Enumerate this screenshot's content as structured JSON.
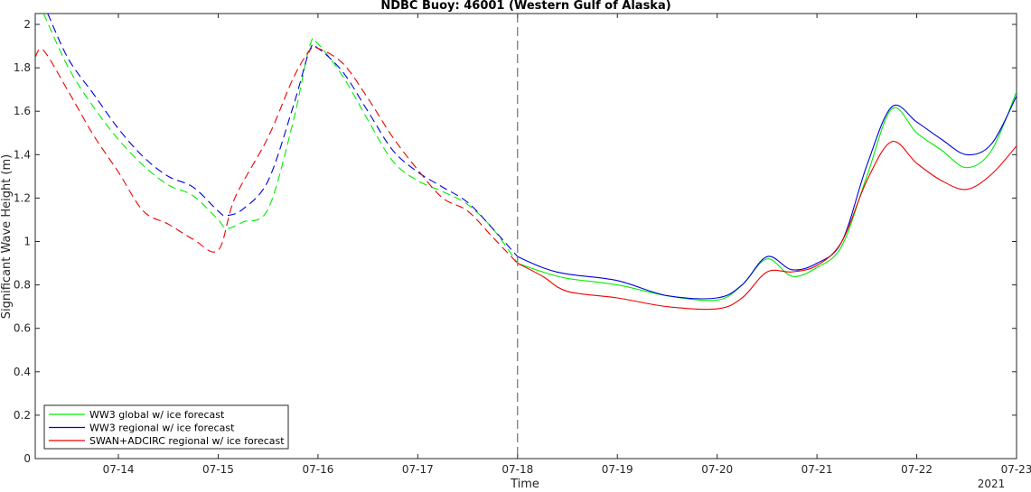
{
  "chart_data": {
    "type": "line",
    "title": "NDBC Buoy: 46001 (Western Gulf of Alaska)",
    "xlabel": "Time",
    "ylabel": "Significant Wave Height (m)",
    "year_label": "2021",
    "xlim": [
      "07-13 04:00",
      "07-23 00:00"
    ],
    "ylim": [
      0,
      2.05
    ],
    "x_ticks": [
      "07-14",
      "07-15",
      "07-16",
      "07-17",
      "07-18",
      "07-19",
      "07-20",
      "07-21",
      "07-22",
      "07-23"
    ],
    "y_ticks": [
      0,
      0.2,
      0.4,
      0.6,
      0.8,
      1,
      1.2,
      1.4,
      1.6,
      1.8,
      2
    ],
    "y_tick_labels": [
      "0",
      "0.2",
      "0.4",
      "0.6",
      "0.8",
      "1",
      "1.2",
      "1.4",
      "1.6",
      "1.8",
      "2"
    ],
    "forecast_start": "07-18",
    "grid": false,
    "legend_position": "bottom-left",
    "series": [
      {
        "name": "WW3 global w/ ice forecast",
        "color": "#00ee00",
        "points": [
          [
            "07-13 06:00",
            2.05
          ],
          [
            "07-13 12:00",
            1.8
          ],
          [
            "07-13 18:00",
            1.62
          ],
          [
            "07-14 00:00",
            1.47
          ],
          [
            "07-14 06:00",
            1.35
          ],
          [
            "07-14 12:00",
            1.26
          ],
          [
            "07-14 18:00",
            1.21
          ],
          [
            "07-15 00:00",
            1.1
          ],
          [
            "07-15 02:00",
            1.06
          ],
          [
            "07-15 06:00",
            1.09
          ],
          [
            "07-15 12:00",
            1.15
          ],
          [
            "07-15 18:00",
            1.55
          ],
          [
            "07-15 22:00",
            1.9
          ],
          [
            "07-16 00:00",
            1.91
          ],
          [
            "07-16 06:00",
            1.76
          ],
          [
            "07-16 12:00",
            1.56
          ],
          [
            "07-16 18:00",
            1.37
          ],
          [
            "07-17 00:00",
            1.28
          ],
          [
            "07-17 06:00",
            1.23
          ],
          [
            "07-17 12:00",
            1.17
          ],
          [
            "07-17 18:00",
            1.06
          ],
          [
            "07-18 00:00",
            0.9
          ],
          [
            "07-18 06:00",
            0.86
          ],
          [
            "07-18 12:00",
            0.83
          ],
          [
            "07-19 00:00",
            0.8
          ],
          [
            "07-19 12:00",
            0.75
          ],
          [
            "07-20 00:00",
            0.73
          ],
          [
            "07-20 06:00",
            0.8
          ],
          [
            "07-20 12:00",
            0.92
          ],
          [
            "07-20 18:00",
            0.84
          ],
          [
            "07-21 00:00",
            0.88
          ],
          [
            "07-21 06:00",
            0.98
          ],
          [
            "07-21 12:00",
            1.3
          ],
          [
            "07-21 18:00",
            1.61
          ],
          [
            "07-22 00:00",
            1.5
          ],
          [
            "07-22 06:00",
            1.42
          ],
          [
            "07-22 12:00",
            1.34
          ],
          [
            "07-22 18:00",
            1.42
          ],
          [
            "07-23 00:00",
            1.69
          ]
        ]
      },
      {
        "name": "WW3 regional w/ ice forecast",
        "color": "#0000dd",
        "points": [
          [
            "07-13 07:00",
            2.05
          ],
          [
            "07-13 12:00",
            1.84
          ],
          [
            "07-13 18:00",
            1.68
          ],
          [
            "07-14 00:00",
            1.52
          ],
          [
            "07-14 06:00",
            1.39
          ],
          [
            "07-14 12:00",
            1.3
          ],
          [
            "07-14 18:00",
            1.25
          ],
          [
            "07-15 00:00",
            1.14
          ],
          [
            "07-15 02:00",
            1.12
          ],
          [
            "07-15 06:00",
            1.15
          ],
          [
            "07-15 12:00",
            1.28
          ],
          [
            "07-15 18:00",
            1.62
          ],
          [
            "07-15 22:00",
            1.88
          ],
          [
            "07-16 00:00",
            1.89
          ],
          [
            "07-16 06:00",
            1.78
          ],
          [
            "07-16 12:00",
            1.6
          ],
          [
            "07-16 18:00",
            1.42
          ],
          [
            "07-17 00:00",
            1.32
          ],
          [
            "07-17 06:00",
            1.25
          ],
          [
            "07-17 12:00",
            1.18
          ],
          [
            "07-17 18:00",
            1.06
          ],
          [
            "07-18 00:00",
            0.93
          ],
          [
            "07-18 06:00",
            0.88
          ],
          [
            "07-18 12:00",
            0.85
          ],
          [
            "07-19 00:00",
            0.82
          ],
          [
            "07-19 12:00",
            0.75
          ],
          [
            "07-20 00:00",
            0.74
          ],
          [
            "07-20 06:00",
            0.8
          ],
          [
            "07-20 12:00",
            0.93
          ],
          [
            "07-20 18:00",
            0.87
          ],
          [
            "07-21 00:00",
            0.9
          ],
          [
            "07-21 06:00",
            1.0
          ],
          [
            "07-21 12:00",
            1.35
          ],
          [
            "07-21 18:00",
            1.62
          ],
          [
            "07-22 00:00",
            1.55
          ],
          [
            "07-22 06:00",
            1.47
          ],
          [
            "07-22 12:00",
            1.4
          ],
          [
            "07-22 18:00",
            1.45
          ],
          [
            "07-23 00:00",
            1.67
          ]
        ]
      },
      {
        "name": "SWAN+ADCIRC regional w/ ice forecast",
        "color": "#ee0000",
        "points": [
          [
            "07-13 04:00",
            1.85
          ],
          [
            "07-13 06:00",
            1.88
          ],
          [
            "07-13 12:00",
            1.69
          ],
          [
            "07-13 18:00",
            1.49
          ],
          [
            "07-14 00:00",
            1.32
          ],
          [
            "07-14 06:00",
            1.14
          ],
          [
            "07-14 12:00",
            1.08
          ],
          [
            "07-14 18:00",
            1.01
          ],
          [
            "07-15 00:00",
            0.96
          ],
          [
            "07-15 04:00",
            1.2
          ],
          [
            "07-15 12:00",
            1.48
          ],
          [
            "07-15 18:00",
            1.75
          ],
          [
            "07-15 22:00",
            1.88
          ],
          [
            "07-16 00:00",
            1.89
          ],
          [
            "07-16 06:00",
            1.82
          ],
          [
            "07-16 12:00",
            1.66
          ],
          [
            "07-16 18:00",
            1.48
          ],
          [
            "07-17 00:00",
            1.33
          ],
          [
            "07-17 06:00",
            1.2
          ],
          [
            "07-17 12:00",
            1.14
          ],
          [
            "07-17 18:00",
            1.02
          ],
          [
            "07-18 00:00",
            0.9
          ],
          [
            "07-18 06:00",
            0.84
          ],
          [
            "07-18 12:00",
            0.77
          ],
          [
            "07-19 00:00",
            0.74
          ],
          [
            "07-19 12:00",
            0.7
          ],
          [
            "07-20 00:00",
            0.69
          ],
          [
            "07-20 06:00",
            0.74
          ],
          [
            "07-20 12:00",
            0.86
          ],
          [
            "07-20 18:00",
            0.86
          ],
          [
            "07-21 00:00",
            0.89
          ],
          [
            "07-21 06:00",
            1.0
          ],
          [
            "07-21 12:00",
            1.28
          ],
          [
            "07-21 18:00",
            1.46
          ],
          [
            "07-22 00:00",
            1.36
          ],
          [
            "07-22 06:00",
            1.28
          ],
          [
            "07-22 12:00",
            1.24
          ],
          [
            "07-22 18:00",
            1.31
          ],
          [
            "07-23 00:00",
            1.44
          ]
        ]
      }
    ]
  }
}
